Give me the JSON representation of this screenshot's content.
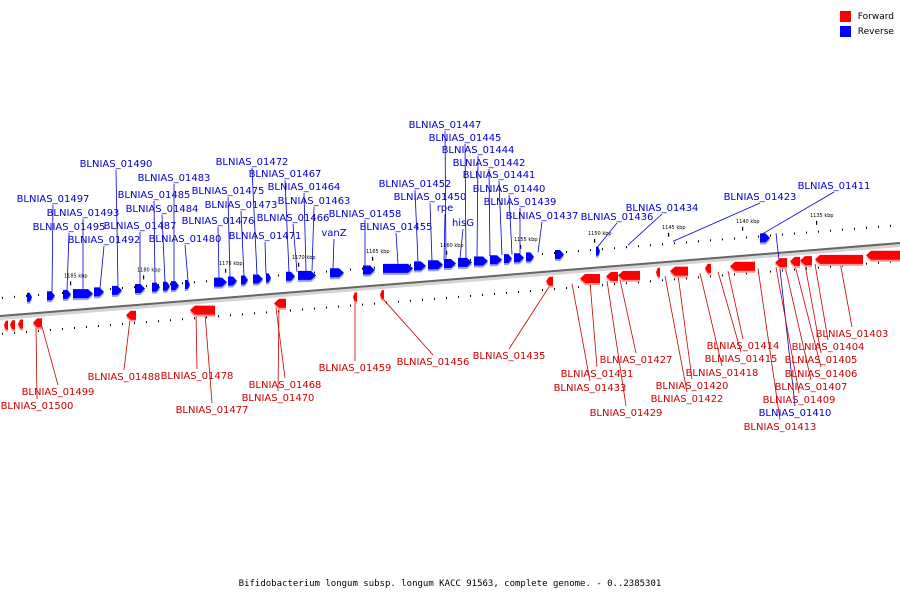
{
  "legend": {
    "forward_label": "Forward",
    "reverse_label": "Reverse",
    "forward_color": "#ff0000",
    "reverse_color": "#0000ff"
  },
  "caption": "Bifidobacterium longum subsp. longum KACC 91563, complete genome. - 0..2385301",
  "ticks": [
    "1185 kbp",
    "1180 kbp",
    "1175 kbp",
    "1170 kbp",
    "1165 kbp",
    "1160 kbp",
    "1155 kbp",
    "1150 kbp",
    "1145 kbp",
    "1140 kbp",
    "1135 kbp"
  ],
  "reverse_genes": [
    "BLNIAS_01497",
    "BLNIAS_01495",
    "BLNIAS_01493",
    "BLNIAS_01492",
    "BLNIAS_01490",
    "BLNIAS_01487",
    "BLNIAS_01485",
    "BLNIAS_01484",
    "BLNIAS_01483",
    "BLNIAS_01480",
    "BLNIAS_01476",
    "BLNIAS_01475",
    "BLNIAS_01473",
    "BLNIAS_01472",
    "BLNIAS_01471",
    "BLNIAS_01467",
    "BLNIAS_01466",
    "BLNIAS_01464",
    "BLNIAS_01463",
    "vanZ",
    "BLNIAS_01458",
    "BLNIAS_01455",
    "BLNIAS_01452",
    "BLNIAS_01450",
    "rpe",
    "hisG",
    "BLNIAS_01447",
    "BLNIAS_01445",
    "BLNIAS_01444",
    "BLNIAS_01442",
    "BLNIAS_01441",
    "BLNIAS_01440",
    "BLNIAS_01439",
    "BLNIAS_01437",
    "BLNIAS_01436",
    "BLNIAS_01434",
    "BLNIAS_01423",
    "BLNIAS_01411",
    "BLNIAS_01410"
  ],
  "forward_genes": [
    "BLNIAS_01500",
    "BLNIAS_01499",
    "BLNIAS_01488",
    "BLNIAS_01478",
    "BLNIAS_01477",
    "BLNIAS_01470",
    "BLNIAS_01468",
    "BLNIAS_01459",
    "BLNIAS_01456",
    "BLNIAS_01435",
    "BLNIAS_01433",
    "BLNIAS_01431",
    "BLNIAS_01429",
    "BLNIAS_01427",
    "BLNIAS_01422",
    "BLNIAS_01420",
    "BLNIAS_01418",
    "BLNIAS_01415",
    "BLNIAS_01414",
    "BLNIAS_01413",
    "BLNIAS_01409",
    "BLNIAS_01407",
    "BLNIAS_01406",
    "BLNIAS_01405",
    "BLNIAS_01404",
    "BLNIAS_01403"
  ]
}
